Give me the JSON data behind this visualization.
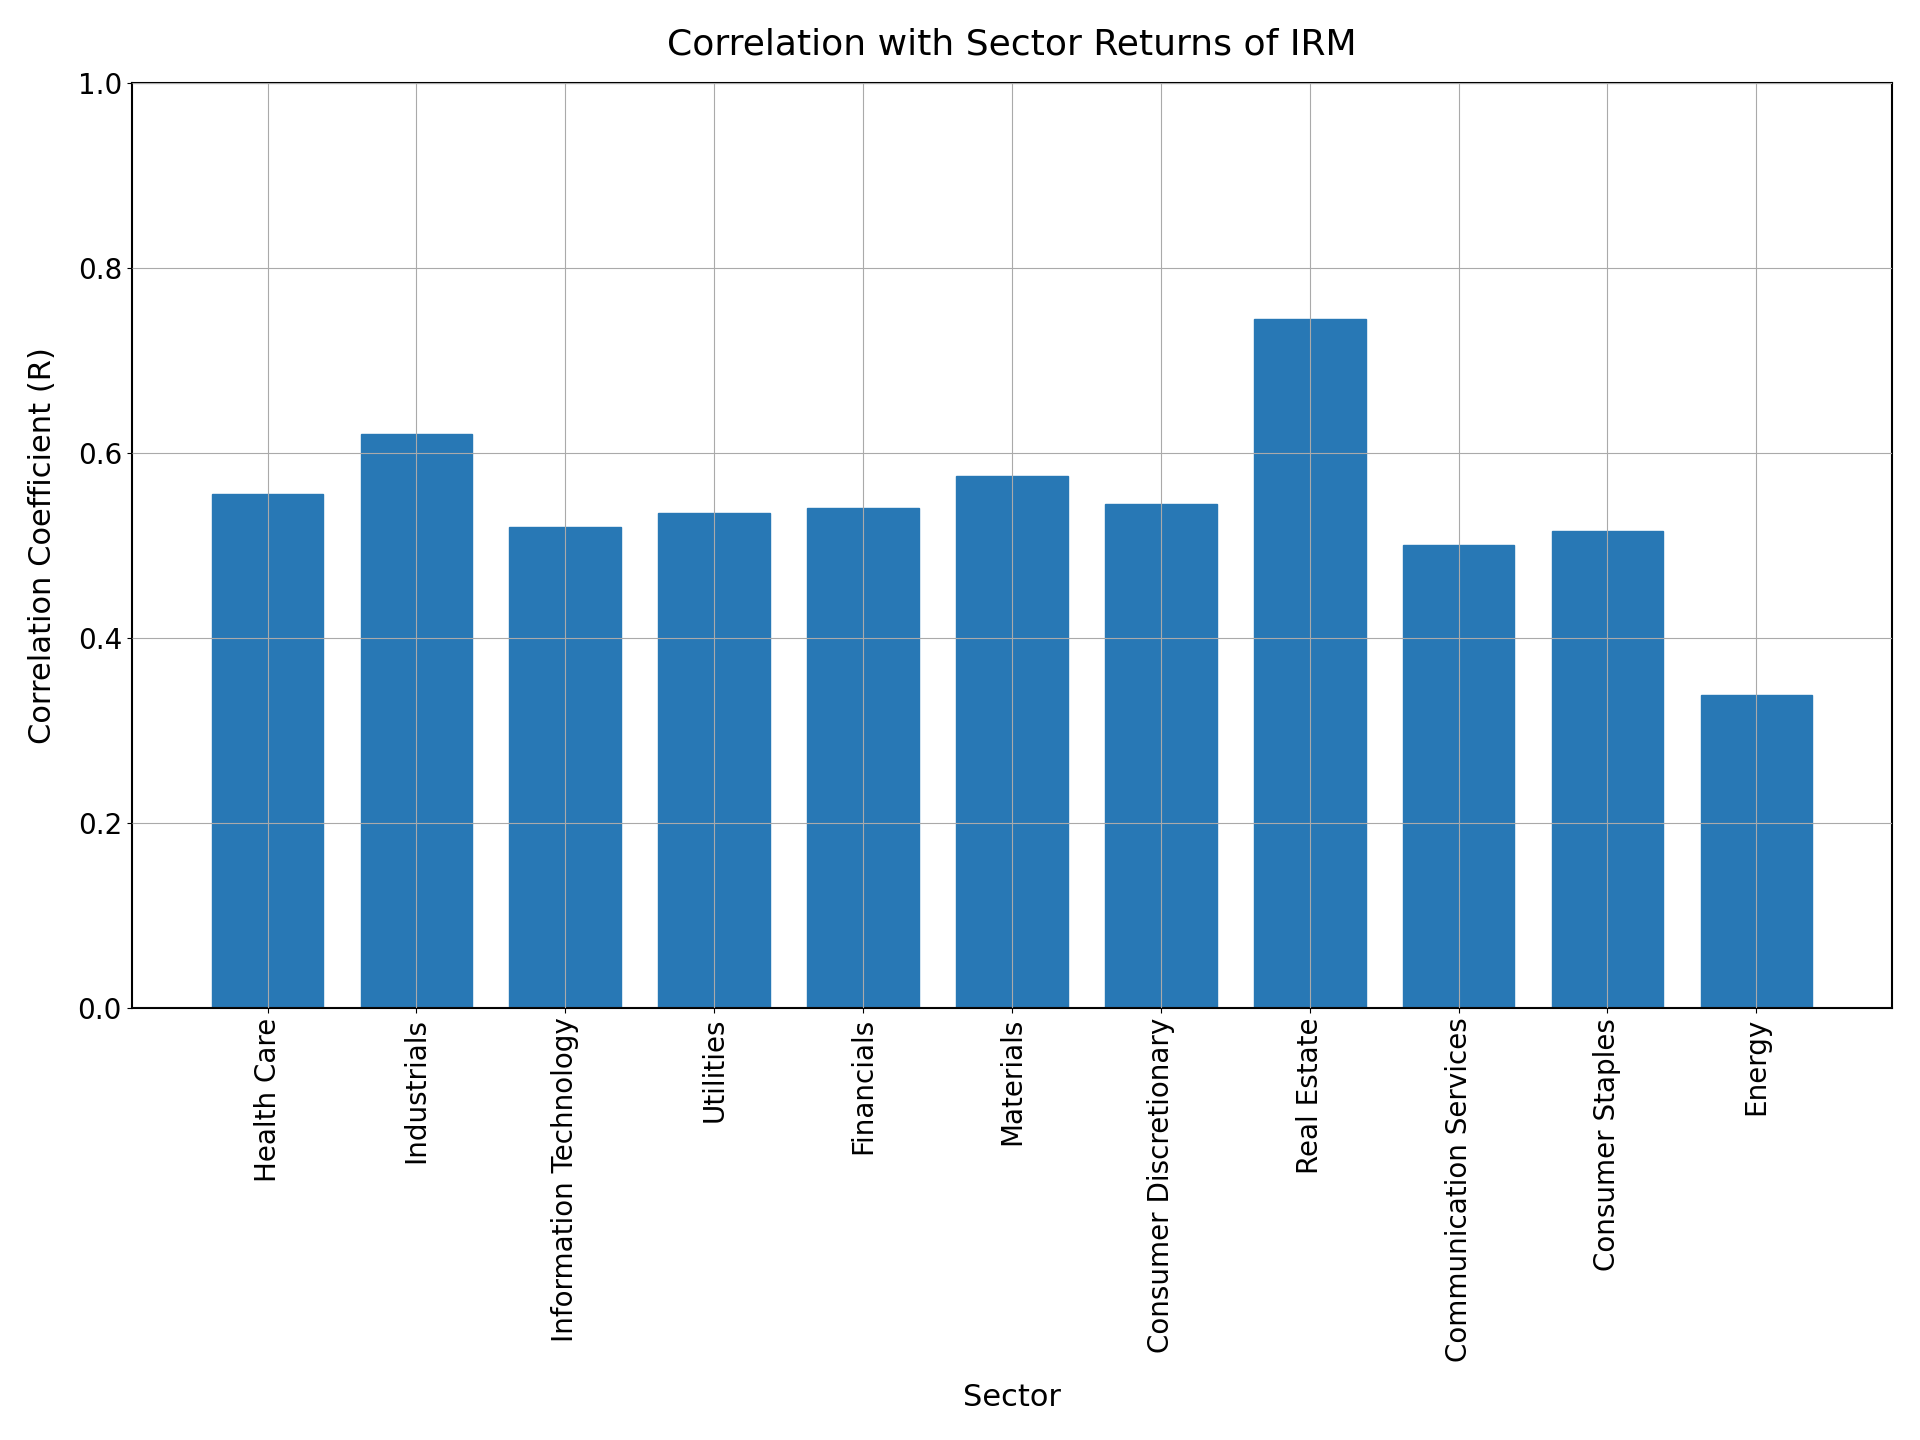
{
  "title": "Correlation with Sector Returns of IRM",
  "xlabel": "Sector",
  "ylabel": "Correlation Coefficient (R)",
  "categories": [
    "Health Care",
    "Industrials",
    "Information Technology",
    "Utilities",
    "Financials",
    "Materials",
    "Consumer Discretionary",
    "Real Estate",
    "Communication Services",
    "Consumer Staples",
    "Energy"
  ],
  "values": [
    0.555,
    0.62,
    0.52,
    0.535,
    0.54,
    0.575,
    0.545,
    0.745,
    0.5,
    0.515,
    0.338
  ],
  "bar_color": "#2878b5",
  "ylim": [
    0.0,
    1.0
  ],
  "yticks": [
    0.0,
    0.2,
    0.4,
    0.6,
    0.8,
    1.0
  ],
  "title_fontsize": 26,
  "label_fontsize": 22,
  "tick_fontsize": 20,
  "grid": true,
  "background_color": "#ffffff",
  "bar_width": 0.75
}
